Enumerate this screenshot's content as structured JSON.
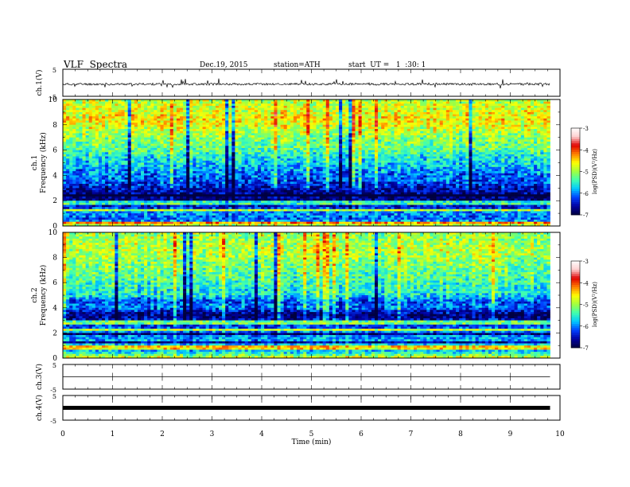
{
  "header": {
    "title": "VLF  Spectra",
    "date": "Dec.19, 2015",
    "station": "station=ATH",
    "start": "start  UT =   1  :30: 1"
  },
  "chart_data": [
    {
      "type": "line",
      "panel": "ch1_waveform",
      "ylabel": "ch.1(V)",
      "ylim": [
        -5,
        5
      ],
      "y_ticks": [
        "5",
        "-5"
      ],
      "xlim": [
        0,
        10
      ],
      "trace_end_min": 9.8,
      "baseline": -0.5,
      "description_values": {
        "typical_min": -2.0,
        "typical_max": 1.0
      }
    },
    {
      "type": "heatmap",
      "panel": "ch1_spectrogram",
      "ylabel_lines": [
        "ch.1",
        "Frequency  (kHz)"
      ],
      "ylim": [
        0,
        10
      ],
      "y_ticks": [
        "0",
        "2",
        "4",
        "6",
        "8",
        "10"
      ],
      "xlim": [
        0,
        9.8
      ],
      "colorbar": {
        "label": "log(PSD)(V²/Hz)",
        "range": [
          -7,
          -3
        ],
        "ticks": [
          "-3",
          "-4",
          "-5",
          "-6",
          "-7"
        ]
      },
      "profile_kHz_logPSD": [
        [
          0.0,
          -4.6
        ],
        [
          0.5,
          -6.2
        ],
        [
          1.0,
          -5.9
        ],
        [
          1.5,
          -6.4
        ],
        [
          2.0,
          -6.8
        ],
        [
          2.5,
          -6.7
        ],
        [
          3.0,
          -6.5
        ],
        [
          3.5,
          -6.2
        ],
        [
          4.0,
          -6.1
        ],
        [
          4.5,
          -5.9
        ],
        [
          5.0,
          -5.7
        ],
        [
          5.5,
          -5.6
        ],
        [
          6.0,
          -5.3
        ],
        [
          6.5,
          -5.2
        ],
        [
          7.0,
          -5.1
        ],
        [
          7.5,
          -4.9
        ],
        [
          8.0,
          -4.7
        ],
        [
          8.5,
          -4.6
        ],
        [
          9.0,
          -4.7
        ],
        [
          9.5,
          -4.8
        ],
        [
          10.0,
          -4.9
        ]
      ]
    },
    {
      "type": "heatmap",
      "panel": "ch2_spectrogram",
      "ylabel_lines": [
        "ch.2",
        "Frequency  (kHz)"
      ],
      "ylim": [
        0,
        10
      ],
      "y_ticks": [
        "0",
        "2",
        "4",
        "6",
        "8",
        "10"
      ],
      "xlim": [
        0,
        9.8
      ],
      "colorbar": {
        "label": "log(PSD)(V²/Hz)",
        "range": [
          -7,
          -3
        ],
        "ticks": [
          "-3",
          "-4",
          "-5",
          "-6",
          "-7"
        ]
      },
      "profile_kHz_logPSD": [
        [
          0.0,
          -4.6
        ],
        [
          0.5,
          -5.8
        ],
        [
          1.0,
          -5.7
        ],
        [
          1.5,
          -5.9
        ],
        [
          2.0,
          -6.0
        ],
        [
          2.5,
          -6.2
        ],
        [
          3.0,
          -6.5
        ],
        [
          3.5,
          -6.8
        ],
        [
          4.0,
          -6.0
        ],
        [
          4.5,
          -6.2
        ],
        [
          5.0,
          -5.6
        ],
        [
          5.5,
          -5.5
        ],
        [
          6.0,
          -5.4
        ],
        [
          6.5,
          -5.3
        ],
        [
          7.0,
          -5.2
        ],
        [
          7.5,
          -5.1
        ],
        [
          8.0,
          -5.0
        ],
        [
          8.5,
          -4.9
        ],
        [
          9.0,
          -4.9
        ],
        [
          9.5,
          -5.0
        ],
        [
          10.0,
          -5.0
        ]
      ]
    },
    {
      "type": "line",
      "panel": "ch3_waveform",
      "ylabel": "ch.3(V)",
      "ylim": [
        -5,
        5
      ],
      "y_ticks": [
        "5",
        "-5"
      ],
      "xlim": [
        0,
        10
      ],
      "trace_end_min": 9.8,
      "baseline": 0.0
    },
    {
      "type": "line",
      "panel": "ch4_waveform",
      "ylabel": "ch.4(V)",
      "ylim": [
        -5,
        5
      ],
      "y_ticks": [
        "5",
        "-5"
      ],
      "xlim": [
        0,
        10
      ],
      "trace_end_min": 9.8,
      "baseline": 0.0,
      "xlabel": "Time  (min)",
      "x_ticks": [
        "0",
        "1",
        "2",
        "3",
        "4",
        "5",
        "6",
        "7",
        "8",
        "9",
        "10"
      ]
    }
  ],
  "colors": {
    "colormap": [
      "#000040",
      "#0000a0",
      "#0040ff",
      "#00c8ff",
      "#40ffb0",
      "#a0ff40",
      "#ffff00",
      "#ff8000",
      "#e00000",
      "#ffd0d0",
      "#ffffff"
    ],
    "axes": "#000000"
  }
}
